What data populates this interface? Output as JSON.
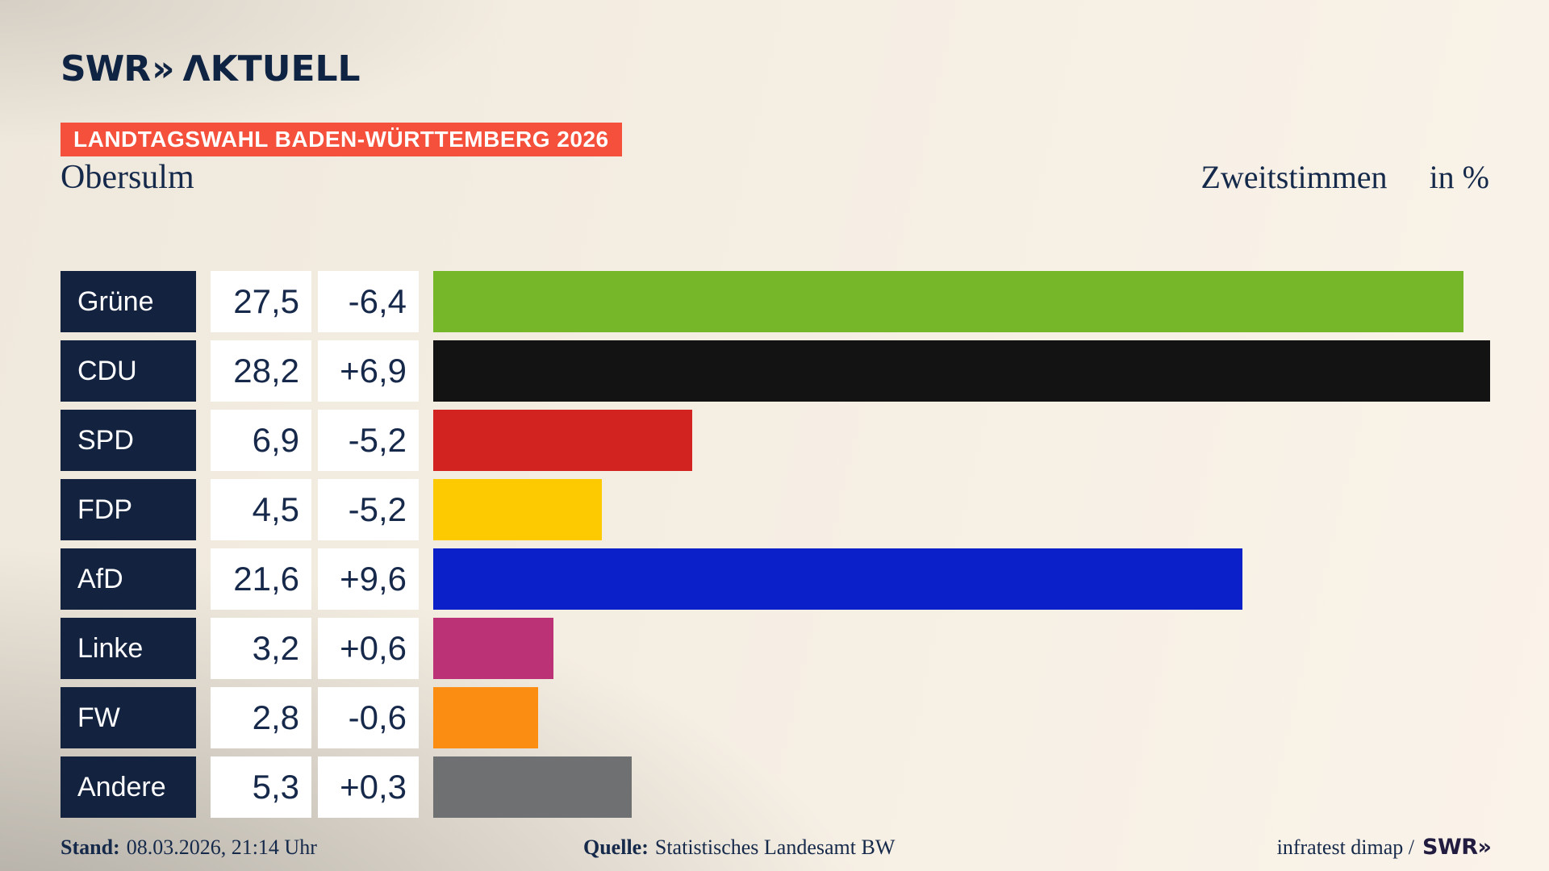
{
  "brand": {
    "logo_swr": "SWR",
    "logo_chevrons": "»",
    "logo_aktuell": "ΛKTUELL"
  },
  "banner": {
    "text": "LANDTAGSWAHL BADEN-WÜRTTEMBERG 2026",
    "bg_color": "#f4503c"
  },
  "header": {
    "region": "Obersulm",
    "measure": "Zweitstimmen",
    "unit": "in %"
  },
  "chart_data": {
    "type": "bar",
    "title": "Landtagswahl Baden-Württemberg 2026 — Obersulm — Zweitstimmen in %",
    "orientation": "horizontal",
    "categories": [
      "Grüne",
      "CDU",
      "SPD",
      "FDP",
      "AfD",
      "Linke",
      "FW",
      "Andere"
    ],
    "values": [
      27.5,
      28.2,
      6.9,
      4.5,
      21.6,
      3.2,
      2.8,
      5.3
    ],
    "changes": [
      -6.4,
      6.9,
      -5.2,
      -5.2,
      9.6,
      0.6,
      -0.6,
      0.3
    ],
    "xlim": [
      0,
      28.2
    ],
    "grid": false,
    "label_box_color": "#13233f",
    "rows": [
      {
        "party": "Grüne",
        "value": 27.5,
        "value_label": "27,5",
        "change_label": "-6,4",
        "color": "#76b72a"
      },
      {
        "party": "CDU",
        "value": 28.2,
        "value_label": "28,2",
        "change_label": "+6,9",
        "color": "#131313"
      },
      {
        "party": "SPD",
        "value": 6.9,
        "value_label": "6,9",
        "change_label": "-5,2",
        "color": "#d22321"
      },
      {
        "party": "FDP",
        "value": 4.5,
        "value_label": "4,5",
        "change_label": "-5,2",
        "color": "#fdca01"
      },
      {
        "party": "AfD",
        "value": 21.6,
        "value_label": "21,6",
        "change_label": "+9,6",
        "color": "#0b20c8"
      },
      {
        "party": "Linke",
        "value": 3.2,
        "value_label": "3,2",
        "change_label": "+0,6",
        "color": "#bc3276"
      },
      {
        "party": "FW",
        "value": 2.8,
        "value_label": "2,8",
        "change_label": "-0,6",
        "color": "#fb8d13"
      },
      {
        "party": "Andere",
        "value": 5.3,
        "value_label": "5,3",
        "change_label": "+0,3",
        "color": "#6f7072"
      }
    ]
  },
  "footer": {
    "stand_label": "Stand:",
    "stand_value": "08.03.2026, 21:14 Uhr",
    "quelle_label": "Quelle:",
    "quelle_value": "Statistisches Landesamt BW",
    "credit_text": "infratest dimap /",
    "credit_swr": "SWR",
    "credit_chevrons": "»"
  }
}
